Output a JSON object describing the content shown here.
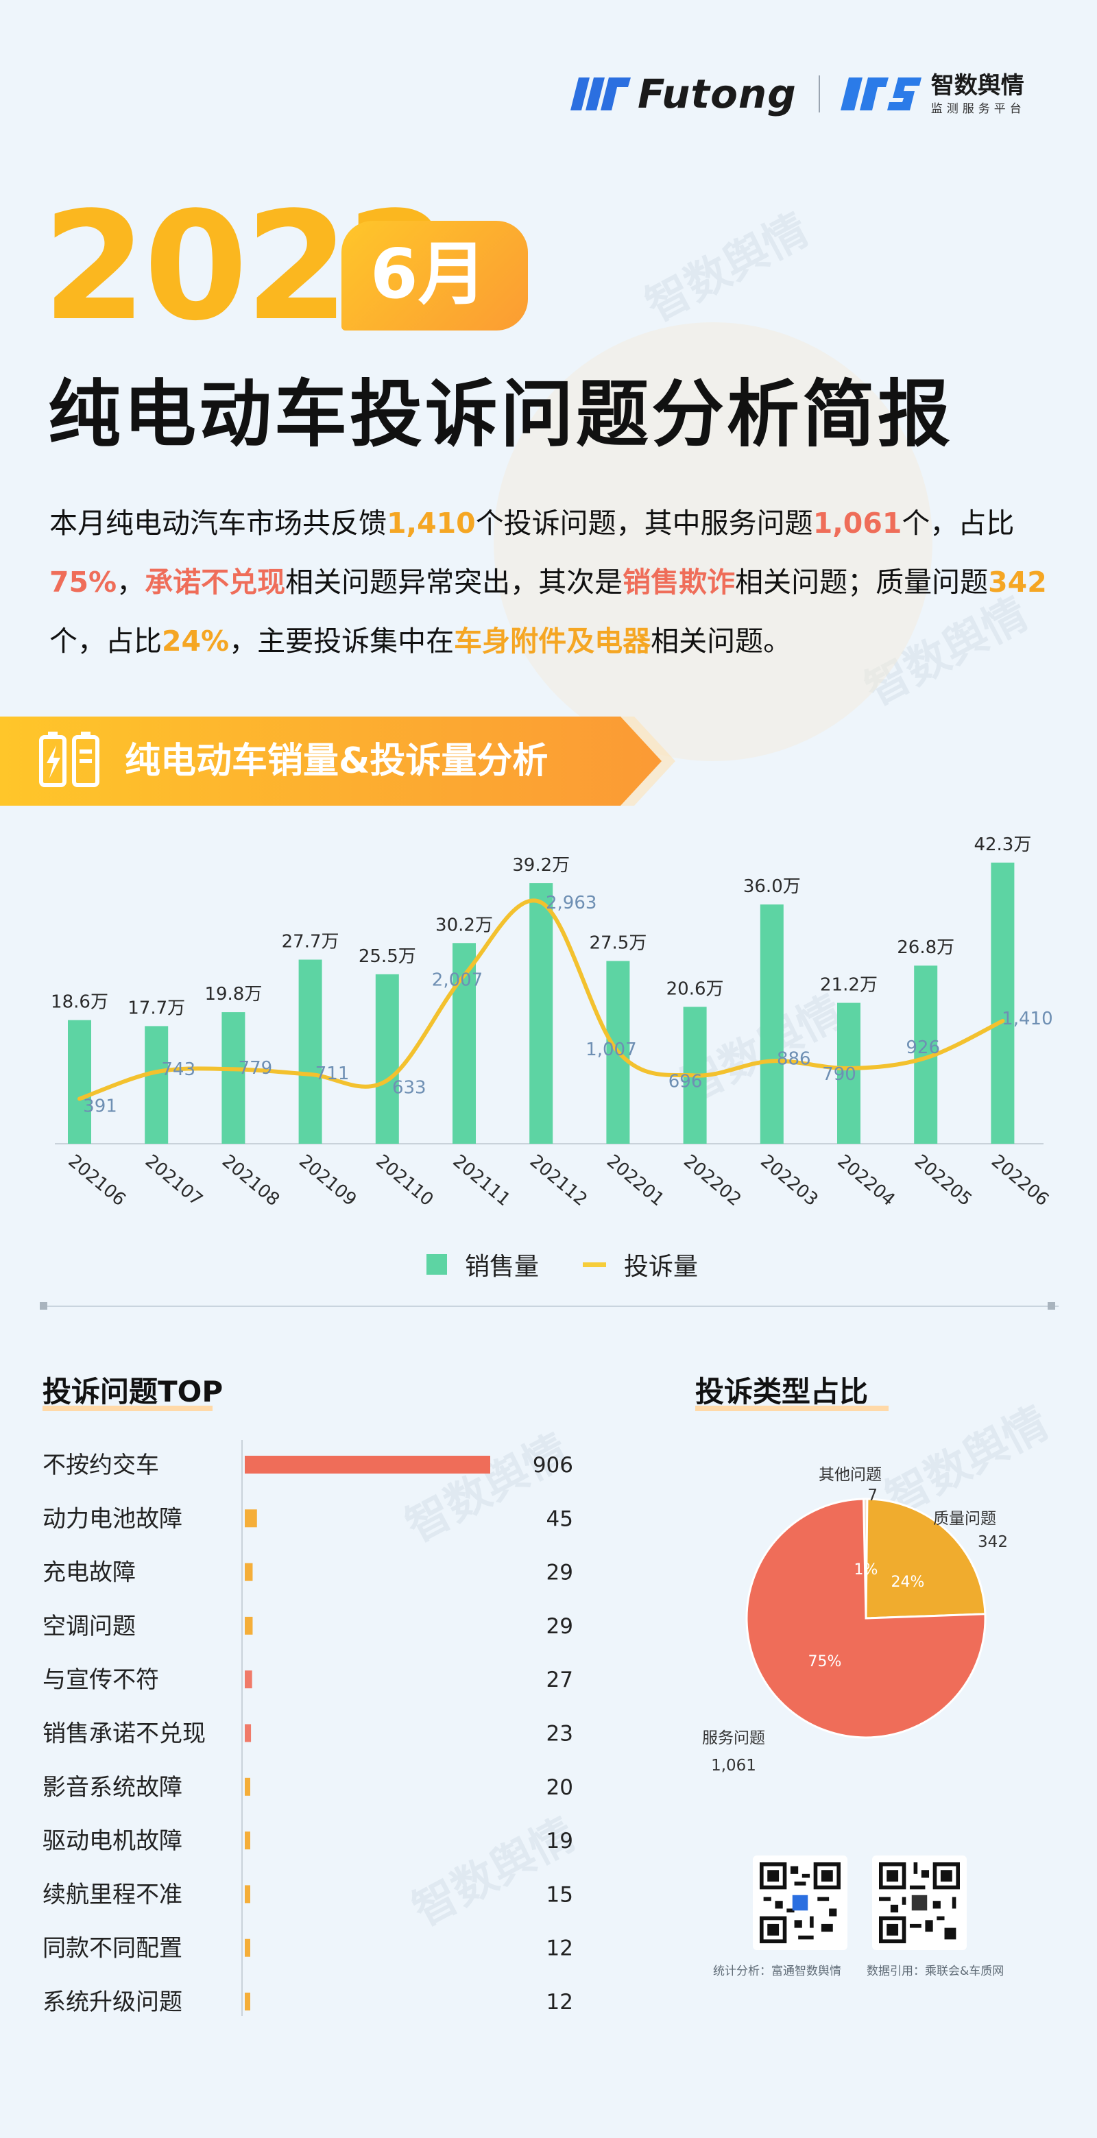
{
  "header": {
    "brand1": "Futong",
    "brand2_title": "智数舆情",
    "brand2_sub": "监测服务平台"
  },
  "title": {
    "year": "2022",
    "month": "6月",
    "main": "纯电动车投诉问题分析简报"
  },
  "intro": {
    "p1": "本月纯电动汽车市场共反馈",
    "v1": "1,410",
    "p2": "个投诉问题，其中服务问题",
    "v2": "1,061",
    "p3": "个，占比",
    "v3": "75%",
    "p4": "，",
    "v4": "承诺不兑现",
    "p5": "相关问题异常突出，其次是",
    "v5": "销售欺诈",
    "p6": "相关问题；质量问题",
    "v6": "342",
    "p7": "个，占比",
    "v7": "24%",
    "p8": "，主要投诉集中在",
    "v8": "车身附件及电器",
    "p9": "相关问题。"
  },
  "section1": {
    "title": "纯电动车销量&投诉量分析"
  },
  "section2": {
    "title": "投诉问题TOP"
  },
  "section3": {
    "title": "投诉类型占比"
  },
  "colors": {
    "green": "#5dd4a3",
    "yellow": "#f3c12e",
    "orange": "#f5a623",
    "red": "#ef6d59",
    "blue_label": "#6e8fb3"
  },
  "chart_data": [
    {
      "type": "bar+line",
      "categories": [
        "202106",
        "202107",
        "202108",
        "202109",
        "202110",
        "202111",
        "202112",
        "202201",
        "202202",
        "202203",
        "202204",
        "202205",
        "202206"
      ],
      "series": [
        {
          "name": "销售量",
          "type": "bar",
          "values": [
            18.6,
            17.7,
            19.8,
            27.7,
            25.5,
            30.2,
            39.2,
            27.5,
            20.6,
            36.0,
            21.2,
            26.8,
            42.3
          ],
          "labels": [
            "18.6万",
            "17.7万",
            "19.8万",
            "27.7万",
            "25.5万",
            "30.2万",
            "39.2万",
            "27.5万",
            "20.6万",
            "36.0万",
            "21.2万",
            "26.8万",
            "42.3万"
          ]
        },
        {
          "name": "投诉量",
          "type": "line",
          "values": [
            391,
            743,
            779,
            711,
            633,
            2007,
            2963,
            1007,
            696,
            886,
            790,
            926,
            1410
          ],
          "labels": [
            "391",
            "743",
            "779",
            "711",
            "633",
            "2,007",
            "2,963",
            "1,007",
            "696",
            "886",
            "790",
            "926",
            "1,410"
          ]
        }
      ],
      "legend": "bottom"
    },
    {
      "type": "bar",
      "orientation": "horizontal",
      "categories": [
        "不按约交车",
        "动力电池故障",
        "充电故障",
        "空调问题",
        "与宣传不符",
        "销售承诺不兑现",
        "影音系统故障",
        "驱动电机故障",
        "续航里程不准",
        "同款不同配置",
        "系统升级问题"
      ],
      "values": [
        906,
        45,
        29,
        29,
        27,
        23,
        20,
        19,
        15,
        12,
        12
      ],
      "labels": [
        "906",
        "45",
        "29",
        "29",
        "27",
        "23",
        "20",
        "19",
        "15",
        "12",
        "12"
      ]
    },
    {
      "type": "pie",
      "slices": [
        {
          "name": "服务问题",
          "value": 1061,
          "value_label": "1,061",
          "pct": "75%"
        },
        {
          "name": "质量问题",
          "value": 342,
          "value_label": "342",
          "pct": "24%"
        },
        {
          "name": "其他问题",
          "value": 7,
          "value_label": "7",
          "pct": "1%"
        }
      ]
    }
  ],
  "footer": {
    "stat": "统计分析：富通智数舆情",
    "source": "数据引用：乘联会&车质网"
  },
  "watermark": {
    "text": "智数舆情",
    "sub": "监测服务平台"
  }
}
